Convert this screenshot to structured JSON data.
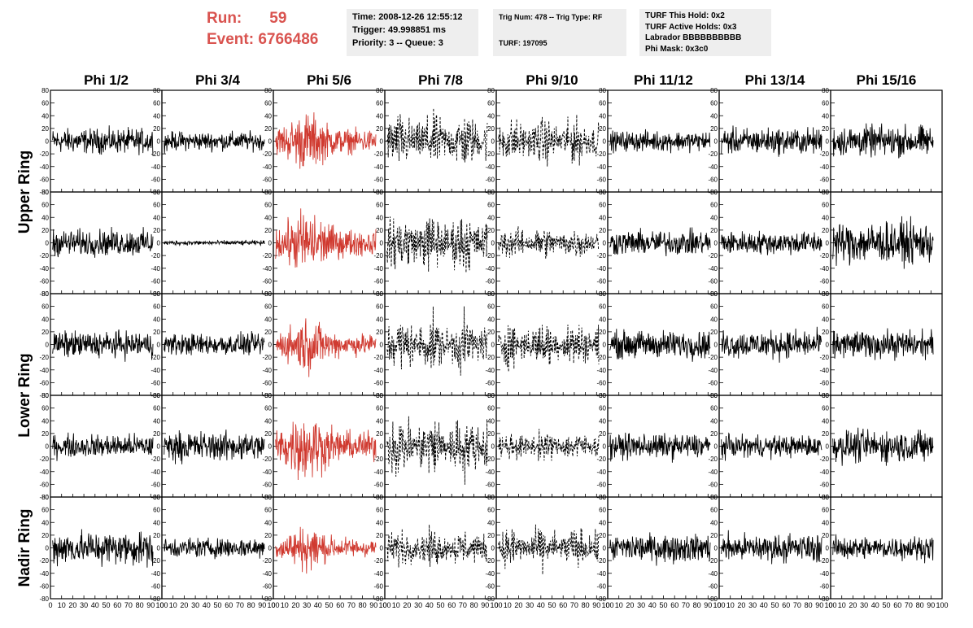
{
  "header": {
    "run_label": "Run:",
    "run_value": "59",
    "event_label": "Event:",
    "event_value": "6766486",
    "box1": [
      "Time: 2008-12-26 12:55:12",
      "Trigger: 49.998851 ms",
      "Priority: 3 -- Queue: 3"
    ],
    "box2": [
      "Trig Num: 478 -- Trig Type: RF",
      "",
      "TURF: 197095"
    ],
    "box3": [
      "TURF This Hold: 0x2",
      "TURF Active Holds: 0x3",
      "Labrador BBBBBBBBBB",
      "Phi Mask: 0x3c0"
    ]
  },
  "colors": {
    "highlight": "#d03a30",
    "normal": "#000000",
    "header_red": "#d9534f"
  },
  "chart_data": {
    "type": "line",
    "columns": [
      "Phi 1/2",
      "Phi 3/4",
      "Phi 5/6",
      "Phi 7/8",
      "Phi 9/10",
      "Phi 11/12",
      "Phi 13/14",
      "Phi 15/16"
    ],
    "rows": [
      "Upper Ring",
      "Upper Ring",
      "Lower Ring",
      "Lower Ring",
      "Nadir Ring"
    ],
    "row_labels": [
      {
        "text": "Upper Ring",
        "rows": [
          0,
          1
        ]
      },
      {
        "text": "Lower Ring",
        "rows": [
          2,
          3
        ]
      },
      {
        "text": "Nadir Ring",
        "rows": [
          4
        ]
      }
    ],
    "xlim": [
      0,
      100
    ],
    "ylim": [
      -80,
      80
    ],
    "x_ticks": [
      "0",
      "10",
      "20",
      "30",
      "40",
      "50",
      "60",
      "70",
      "80",
      "90",
      "100"
    ],
    "x_ticks_first_panel": [
      "0",
      "10",
      "20",
      "30",
      "40",
      "50",
      "60",
      "70",
      "80",
      "90",
      "100"
    ],
    "y_ticks": [
      "80",
      "60",
      "40",
      "20",
      "0",
      "-20",
      "-40",
      "-60",
      "-80"
    ],
    "highlight_column": 2,
    "dashed_columns": [
      3,
      4
    ],
    "panels": [
      {
        "row": 0,
        "col": 0,
        "amp": 16,
        "style": "normal"
      },
      {
        "row": 0,
        "col": 1,
        "amp": 12,
        "style": "normal"
      },
      {
        "row": 0,
        "col": 2,
        "amp": 28,
        "style": "highlight"
      },
      {
        "row": 0,
        "col": 3,
        "amp": 30,
        "style": "dashed"
      },
      {
        "row": 0,
        "col": 4,
        "amp": 25,
        "style": "dashed"
      },
      {
        "row": 0,
        "col": 5,
        "amp": 13,
        "style": "normal"
      },
      {
        "row": 0,
        "col": 6,
        "amp": 17,
        "style": "normal"
      },
      {
        "row": 0,
        "col": 7,
        "amp": 20,
        "style": "normal"
      },
      {
        "row": 1,
        "col": 0,
        "amp": 17,
        "style": "normal"
      },
      {
        "row": 1,
        "col": 1,
        "amp": 3,
        "style": "normal"
      },
      {
        "row": 1,
        "col": 2,
        "amp": 32,
        "style": "highlight"
      },
      {
        "row": 1,
        "col": 3,
        "amp": 32,
        "style": "dashed"
      },
      {
        "row": 1,
        "col": 4,
        "amp": 17,
        "style": "dashed"
      },
      {
        "row": 1,
        "col": 5,
        "amp": 16,
        "style": "normal"
      },
      {
        "row": 1,
        "col": 6,
        "amp": 15,
        "style": "normal"
      },
      {
        "row": 1,
        "col": 7,
        "amp": 27,
        "style": "normal"
      },
      {
        "row": 2,
        "col": 0,
        "amp": 17,
        "style": "normal"
      },
      {
        "row": 2,
        "col": 1,
        "amp": 14,
        "style": "normal"
      },
      {
        "row": 2,
        "col": 2,
        "amp": 26,
        "style": "highlight"
      },
      {
        "row": 2,
        "col": 3,
        "amp": 30,
        "style": "dashed"
      },
      {
        "row": 2,
        "col": 4,
        "amp": 25,
        "style": "dashed"
      },
      {
        "row": 2,
        "col": 5,
        "amp": 18,
        "style": "normal"
      },
      {
        "row": 2,
        "col": 6,
        "amp": 18,
        "style": "normal"
      },
      {
        "row": 2,
        "col": 7,
        "amp": 18,
        "style": "normal"
      },
      {
        "row": 3,
        "col": 0,
        "amp": 15,
        "style": "normal"
      },
      {
        "row": 3,
        "col": 1,
        "amp": 19,
        "style": "normal"
      },
      {
        "row": 3,
        "col": 2,
        "amp": 34,
        "style": "highlight"
      },
      {
        "row": 3,
        "col": 3,
        "amp": 34,
        "style": "dashed"
      },
      {
        "row": 3,
        "col": 4,
        "amp": 16,
        "style": "dashed"
      },
      {
        "row": 3,
        "col": 5,
        "amp": 16,
        "style": "normal"
      },
      {
        "row": 3,
        "col": 6,
        "amp": 14,
        "style": "normal"
      },
      {
        "row": 3,
        "col": 7,
        "amp": 21,
        "style": "normal"
      },
      {
        "row": 4,
        "col": 0,
        "amp": 22,
        "style": "normal"
      },
      {
        "row": 4,
        "col": 1,
        "amp": 13,
        "style": "normal"
      },
      {
        "row": 4,
        "col": 2,
        "amp": 22,
        "style": "highlight"
      },
      {
        "row": 4,
        "col": 3,
        "amp": 20,
        "style": "dashed"
      },
      {
        "row": 4,
        "col": 4,
        "amp": 22,
        "style": "dashed"
      },
      {
        "row": 4,
        "col": 5,
        "amp": 18,
        "style": "normal"
      },
      {
        "row": 4,
        "col": 6,
        "amp": 18,
        "style": "normal"
      },
      {
        "row": 4,
        "col": 7,
        "amp": 15,
        "style": "normal"
      }
    ]
  }
}
